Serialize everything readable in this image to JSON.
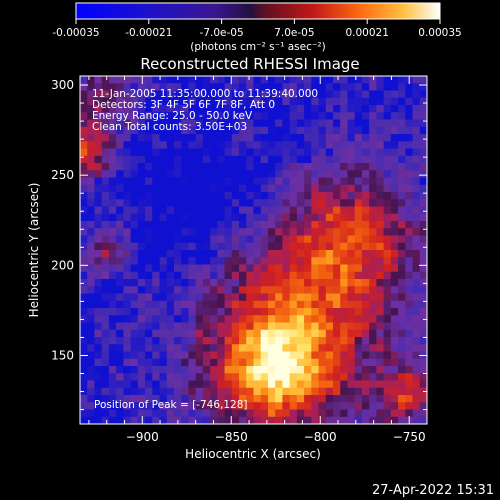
{
  "colorbar": {
    "tick_labels": [
      "-0.00035",
      "-0.00021",
      "-7.0e-05",
      "7.0e-05",
      "0.00021",
      "0.00035"
    ],
    "tick_values": [
      -0.00035,
      -0.00021,
      -7e-05,
      7e-05,
      0.00021,
      0.00035
    ],
    "range": [
      -0.00035,
      0.00035
    ],
    "units_label": "(photons cm⁻² s⁻¹ asec⁻²)"
  },
  "plot": {
    "title": "Reconstructed RHESSI Image",
    "info_lines": [
      "11-Jan-2005 11:35:00.000 to 11:39:40.000",
      "Detectors: 3F 4F 5F 6F 7F 8F, Att 0",
      "Energy Range: 25.0 - 50.0 keV",
      "Clean    Total counts: 3.50E+03"
    ],
    "peak_label": "Position of Peak = [-746,128]"
  },
  "chart_data": {
    "type": "heatmap",
    "title": "Reconstructed RHESSI Image",
    "xlabel": "Heliocentric X (arcsec)",
    "ylabel": "Heliocentric Y (arcsec)",
    "xlim": [
      -935,
      -740
    ],
    "ylim": [
      112,
      305
    ],
    "x_ticks": [
      -900,
      -850,
      -800,
      -750
    ],
    "y_ticks": [
      150,
      200,
      250,
      300
    ],
    "x_tick_labels": [
      "−900",
      "−850",
      "−800",
      "−750"
    ],
    "y_tick_labels": [
      "150",
      "200",
      "250",
      "300"
    ],
    "colorscale": [
      "#1010d0",
      "#4a2db0",
      "#6e2fa0",
      "#a02060",
      "#d02020",
      "#f05a10",
      "#ffa020",
      "#ffe060",
      "#ffffe0"
    ],
    "grid": false
  },
  "footer": {
    "date_stamp": "27-Apr-2022 15:31"
  }
}
